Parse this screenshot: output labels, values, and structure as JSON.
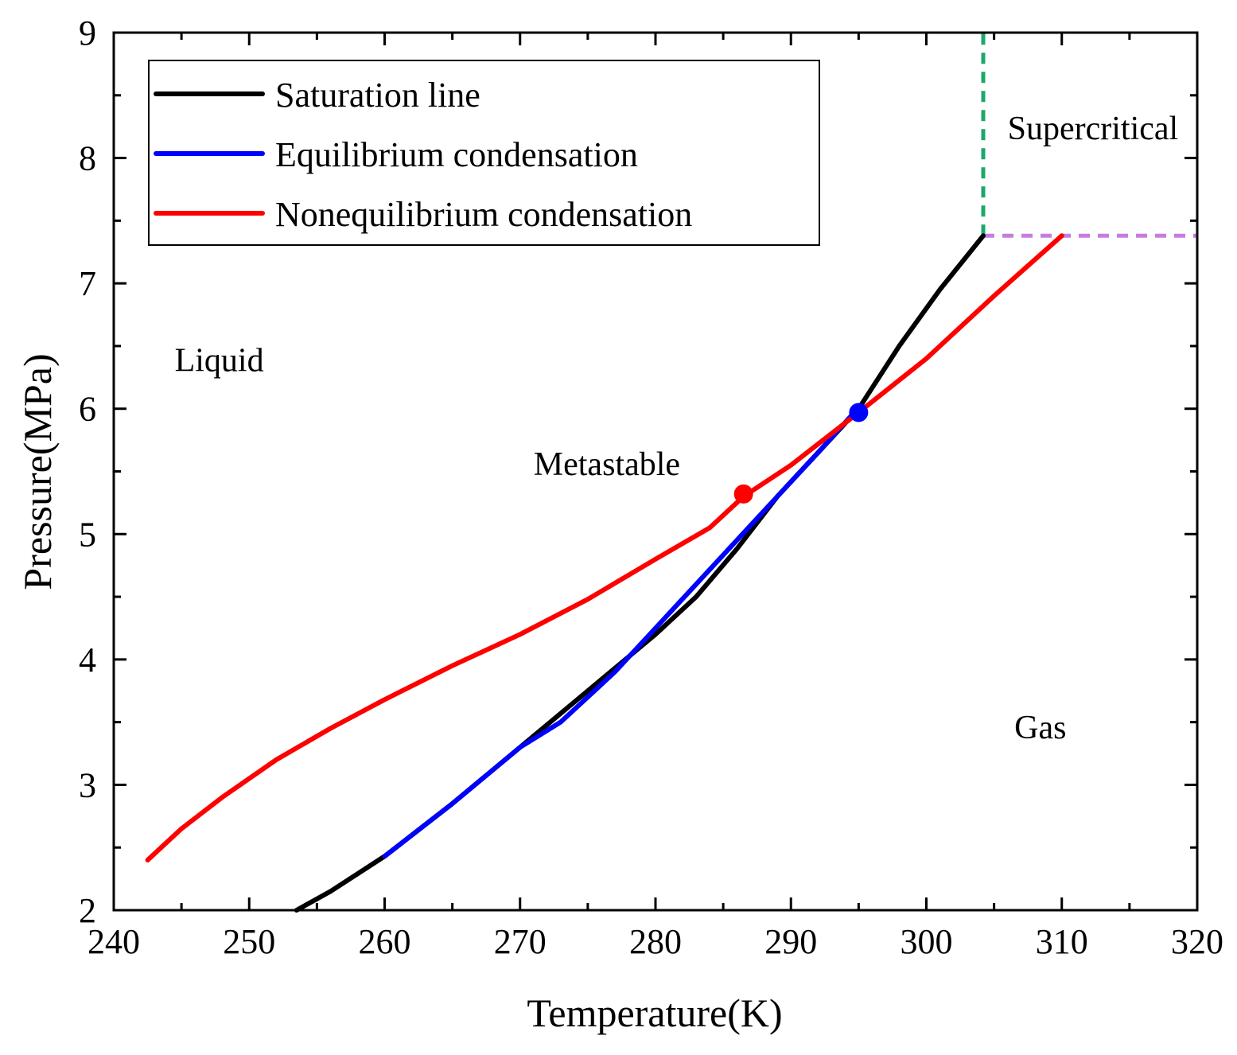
{
  "chart_data": {
    "type": "line",
    "title": "",
    "xlabel": "Temperature(K)",
    "ylabel": "Pressure(MPa)",
    "xlim": [
      240,
      320
    ],
    "ylim": [
      2,
      9
    ],
    "x_ticks": [
      240,
      250,
      260,
      270,
      280,
      290,
      300,
      310,
      320
    ],
    "y_ticks": [
      2,
      3,
      4,
      5,
      6,
      7,
      8,
      9
    ],
    "grid": false,
    "legend_position": "top-left",
    "series": [
      {
        "name": "Saturation line",
        "color": "#000000",
        "points": [
          [
            253.5,
            2.0
          ],
          [
            256,
            2.15
          ],
          [
            260,
            2.43
          ],
          [
            265,
            2.85
          ],
          [
            270,
            3.3
          ],
          [
            275,
            3.75
          ],
          [
            280,
            4.2
          ],
          [
            283,
            4.5
          ],
          [
            286,
            4.88
          ],
          [
            289,
            5.3
          ],
          [
            292,
            5.65
          ],
          [
            295,
            6.0
          ],
          [
            298,
            6.5
          ],
          [
            301,
            6.95
          ],
          [
            304.2,
            7.38
          ]
        ]
      },
      {
        "name": "Equilibrium condensation",
        "color": "#0000ff",
        "points": [
          [
            260,
            2.43
          ],
          [
            265,
            2.85
          ],
          [
            270,
            3.3
          ],
          [
            273,
            3.5
          ],
          [
            277,
            3.9
          ],
          [
            280,
            4.25
          ],
          [
            283,
            4.6
          ],
          [
            286,
            4.95
          ],
          [
            289,
            5.3
          ],
          [
            292,
            5.65
          ],
          [
            294.5,
            5.95
          ]
        ]
      },
      {
        "name": "Nonequilibrium condensation",
        "color": "#ff0000",
        "points": [
          [
            242.5,
            2.4
          ],
          [
            245,
            2.65
          ],
          [
            248,
            2.9
          ],
          [
            252,
            3.2
          ],
          [
            256,
            3.45
          ],
          [
            260,
            3.68
          ],
          [
            265,
            3.95
          ],
          [
            270,
            4.2
          ],
          [
            275,
            4.48
          ],
          [
            280,
            4.8
          ],
          [
            284,
            5.05
          ],
          [
            286.5,
            5.3
          ],
          [
            290,
            5.55
          ],
          [
            295,
            5.97
          ],
          [
            300,
            6.4
          ],
          [
            305,
            6.9
          ],
          [
            310,
            7.38
          ]
        ]
      }
    ],
    "markers": [
      {
        "name": "nonequilibrium-onset",
        "x": 286.5,
        "y": 5.32,
        "color": "#ff0000"
      },
      {
        "name": "equilibrium-onset",
        "x": 295.0,
        "y": 5.97,
        "color": "#0000ff"
      }
    ],
    "reference_lines": [
      {
        "name": "critical-temperature-line",
        "orientation": "vertical",
        "x": 304.2,
        "y_from": 7.38,
        "y_to": 9,
        "color": "#1aa86b"
      },
      {
        "name": "critical-pressure-line",
        "orientation": "horizontal",
        "y": 7.38,
        "x_from": 304.2,
        "x_to": 320,
        "color": "#c77de0"
      }
    ],
    "annotations": [
      {
        "text": "Liquid",
        "x": 244.5,
        "y": 6.3
      },
      {
        "text": "Metastable",
        "x": 271,
        "y": 5.47
      },
      {
        "text": "Supercritical",
        "x": 306,
        "y": 8.15
      },
      {
        "text": "Gas",
        "x": 306.5,
        "y": 3.37
      }
    ]
  }
}
